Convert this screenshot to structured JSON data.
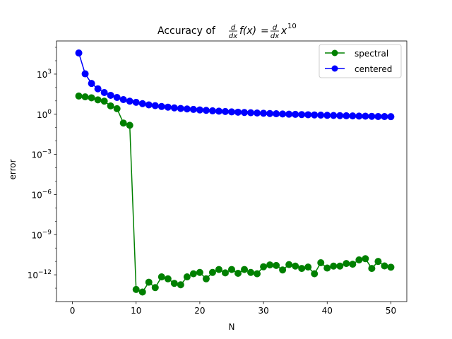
{
  "chart_data": {
    "type": "line",
    "title": {
      "prefix": "Accuracy of ",
      "frac1_num": "d",
      "frac1_den": "dx",
      "f_of_x": "f(x)",
      "equals": "=",
      "frac2_num": "d",
      "frac2_den": "dx",
      "base": "x",
      "exponent": "10"
    },
    "xlabel": "N",
    "ylabel": "error",
    "xlim": [
      -2.5,
      52.5
    ],
    "ylim": [
      1e-14,
      300000.0
    ],
    "yscale": "log",
    "grid": false,
    "legend_position": "upper right",
    "xticks": [
      {
        "value": 0,
        "label": "0"
      },
      {
        "value": 10,
        "label": "10"
      },
      {
        "value": 20,
        "label": "20"
      },
      {
        "value": 30,
        "label": "30"
      },
      {
        "value": 40,
        "label": "40"
      },
      {
        "value": 50,
        "label": "50"
      }
    ],
    "yticks": [
      {
        "value": 1000.0,
        "base": "10",
        "exp": "3"
      },
      {
        "value": 1.0,
        "base": "10",
        "exp": "0"
      },
      {
        "value": 0.001,
        "base": "10",
        "exp": "−3"
      },
      {
        "value": 1e-06,
        "base": "10",
        "exp": "−6"
      },
      {
        "value": 1e-09,
        "base": "10",
        "exp": "−9"
      },
      {
        "value": 1e-12,
        "base": "10",
        "exp": "−12"
      }
    ],
    "x": [
      1,
      2,
      3,
      4,
      5,
      6,
      7,
      8,
      9,
      10,
      11,
      12,
      13,
      14,
      15,
      16,
      17,
      18,
      19,
      20,
      21,
      22,
      23,
      24,
      25,
      26,
      27,
      28,
      29,
      30,
      31,
      32,
      33,
      34,
      35,
      36,
      37,
      38,
      39,
      40,
      41,
      42,
      43,
      44,
      45,
      46,
      47,
      48,
      49,
      50
    ],
    "series": [
      {
        "name": "spectral",
        "color": "#008000",
        "values": [
          23,
          20,
          17,
          12,
          9.5,
          4.2,
          2.6,
          0.22,
          0.15,
          8e-14,
          5.2e-14,
          2.8e-13,
          1.1e-13,
          7e-13,
          5e-13,
          2.3e-13,
          1.8e-13,
          7e-13,
          1.2e-12,
          1.5e-12,
          5e-13,
          1.5e-12,
          2.5e-12,
          1.4e-12,
          2.5e-12,
          1.3e-12,
          2.5e-12,
          1.5e-12,
          1.2e-12,
          4e-12,
          5.5e-12,
          5e-12,
          2.3e-12,
          5.8e-12,
          4.5e-12,
          3e-12,
          3.8e-12,
          1.2e-12,
          8e-12,
          3.2e-12,
          4.5e-12,
          4.5e-12,
          7e-12,
          6.2e-12,
          1.3e-11,
          1.6e-11,
          3e-12,
          1e-11,
          4.6e-12,
          3.7e-12
        ]
      },
      {
        "name": "centered",
        "color": "#0000ff",
        "values": [
          38000.0,
          1050.0,
          200,
          80,
          42,
          26,
          18,
          12.5,
          9.5,
          7.8,
          6.2,
          5,
          4.4,
          3.8,
          3.4,
          3,
          2.7,
          2.5,
          2.3,
          2.1,
          1.95,
          1.8,
          1.7,
          1.6,
          1.5,
          1.43,
          1.36,
          1.3,
          1.24,
          1.19,
          1.14,
          1.09,
          1.05,
          1.01,
          0.98,
          0.95,
          0.92,
          0.89,
          0.86,
          0.83,
          0.81,
          0.79,
          0.77,
          0.75,
          0.73,
          0.72,
          0.7,
          0.68,
          0.67,
          0.66
        ]
      }
    ]
  }
}
